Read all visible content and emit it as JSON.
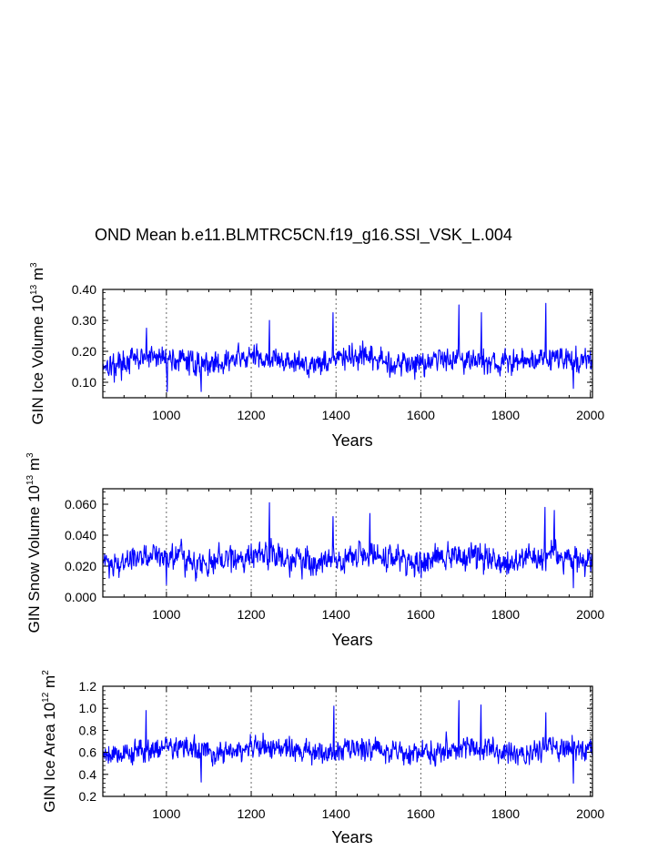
{
  "chart_data": [
    {
      "type": "line",
      "title": "OND Mean b.e11.BLMTRC5CN.f19_g16.SSI_VSK_L.004",
      "xlabel": "Years",
      "ylabel": {
        "text": "GIN Ice Volume 10",
        "exp1": "13",
        "unit": " m",
        "exp2": "3"
      },
      "xlim": [
        850,
        2005
      ],
      "ylim": [
        0.05,
        0.4
      ],
      "xticks": [
        1000,
        1200,
        1400,
        1600,
        1800,
        2000
      ],
      "xtick_labels": [
        "1000",
        "1200",
        "1400",
        "1600",
        "1800",
        "2000"
      ],
      "yticks": [
        0.1,
        0.2,
        0.3,
        0.4
      ],
      "ytick_labels": [
        "0.10",
        "0.20",
        "0.30",
        "0.40"
      ],
      "grid": "dotted vertical lines at 1000, 1200, 1400, 1600, 1800, 2000",
      "series": [
        {
          "name": "GIN Ice Volume",
          "color": "#0000ff",
          "mean": 0.17,
          "noise": 0.04,
          "x_start": 850,
          "x_end": 2005,
          "x_step": 1,
          "approximate": true,
          "peaks": [
            {
              "x": 877,
              "y": 0.1
            },
            {
              "x": 953,
              "y": 0.275
            },
            {
              "x": 1002,
              "y": 0.07
            },
            {
              "x": 1082,
              "y": 0.07
            },
            {
              "x": 1243,
              "y": 0.3
            },
            {
              "x": 1393,
              "y": 0.325
            },
            {
              "x": 1690,
              "y": 0.35
            },
            {
              "x": 1743,
              "y": 0.325
            },
            {
              "x": 1895,
              "y": 0.355
            },
            {
              "x": 1960,
              "y": 0.08
            }
          ]
        }
      ]
    },
    {
      "type": "line",
      "xlabel": "Years",
      "ylabel": {
        "text": "GIN Snow Volume 10",
        "exp1": "13",
        "unit": " m",
        "exp2": "3"
      },
      "xlim": [
        850,
        2005
      ],
      "ylim": [
        0.0,
        0.07
      ],
      "xticks": [
        1000,
        1200,
        1400,
        1600,
        1800,
        2000
      ],
      "xtick_labels": [
        "1000",
        "1200",
        "1400",
        "1600",
        "1800",
        "2000"
      ],
      "yticks": [
        0.0,
        0.02,
        0.04,
        0.06
      ],
      "ytick_labels": [
        "0.000",
        "0.020",
        "0.040",
        "0.060"
      ],
      "grid": "dotted vertical lines at 1000, 1200, 1400, 1600, 1800, 2000",
      "series": [
        {
          "name": "GIN Snow Volume",
          "color": "#0000ff",
          "mean": 0.025,
          "noise": 0.009,
          "x_start": 850,
          "x_end": 2005,
          "x_step": 1,
          "approximate": true,
          "peaks": [
            {
              "x": 1000,
              "y": 0.008
            },
            {
              "x": 1243,
              "y": 0.061
            },
            {
              "x": 1393,
              "y": 0.052
            },
            {
              "x": 1480,
              "y": 0.054
            },
            {
              "x": 1893,
              "y": 0.058
            },
            {
              "x": 1915,
              "y": 0.056
            },
            {
              "x": 1960,
              "y": 0.006
            }
          ]
        }
      ]
    },
    {
      "type": "line",
      "xlabel": "Years",
      "ylabel": {
        "text": "GIN Ice Area 10",
        "exp1": "12",
        "unit": " m",
        "exp2": "2"
      },
      "xlim": [
        850,
        2005
      ],
      "ylim": [
        0.2,
        1.2
      ],
      "xticks": [
        1000,
        1200,
        1400,
        1600,
        1800,
        2000
      ],
      "xtick_labels": [
        "1000",
        "1200",
        "1400",
        "1600",
        "1800",
        "2000"
      ],
      "yticks": [
        0.2,
        0.4,
        0.6,
        0.8,
        1.0,
        1.2
      ],
      "ytick_labels": [
        "0.2",
        "0.4",
        "0.6",
        "0.8",
        "1.0",
        "1.2"
      ],
      "grid": "dotted vertical lines at 1000, 1200, 1400, 1600, 1800, 2000",
      "series": [
        {
          "name": "GIN Ice Area",
          "color": "#0000ff",
          "mean": 0.62,
          "noise": 0.11,
          "x_start": 850,
          "x_end": 2005,
          "x_step": 1,
          "approximate": true,
          "peaks": [
            {
              "x": 952,
              "y": 0.98
            },
            {
              "x": 1082,
              "y": 0.33
            },
            {
              "x": 1395,
              "y": 1.02
            },
            {
              "x": 1690,
              "y": 1.07
            },
            {
              "x": 1742,
              "y": 1.03
            },
            {
              "x": 1895,
              "y": 0.96
            },
            {
              "x": 1960,
              "y": 0.32
            }
          ]
        }
      ]
    }
  ]
}
